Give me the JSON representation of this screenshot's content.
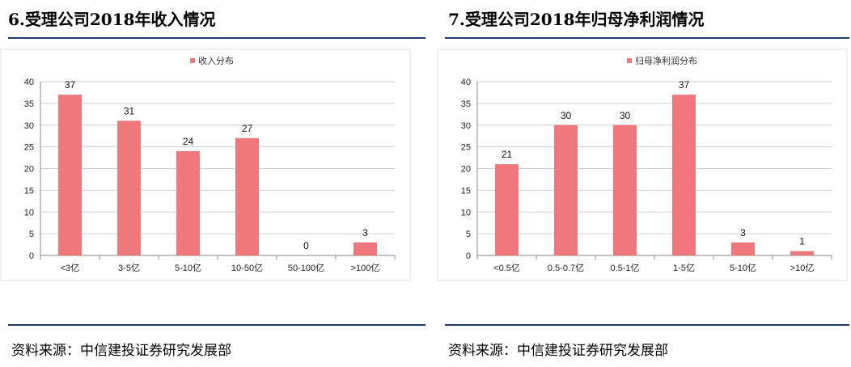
{
  "colors": {
    "bar": "#f0787c",
    "rule": "#1f3864",
    "grid": "#d0d0d0",
    "axis": "#888888"
  },
  "left": {
    "heading": "6.受理公司2018年收入情况",
    "source": "资料来源：中信建投证券研究发展部"
  },
  "right": {
    "heading": "7.受理公司2018年归母净利润情况",
    "source": "资料来源：中信建投证券研究发展部"
  },
  "chart_data": [
    {
      "type": "bar",
      "title": "",
      "legend": "收入分布",
      "legend_position": "top-center",
      "categories": [
        "<3亿",
        "3-5亿",
        "5-10亿",
        "10-50亿",
        "50-100亿",
        ">100亿"
      ],
      "values": [
        37,
        31,
        24,
        27,
        0,
        3
      ],
      "ylim": [
        0,
        40
      ],
      "yticks": [
        0,
        5,
        10,
        15,
        20,
        25,
        30,
        35,
        40
      ],
      "grid": true
    },
    {
      "type": "bar",
      "title": "",
      "legend": "归母净利润分布",
      "legend_position": "top-center",
      "categories": [
        "<0.5亿",
        "0.5-0.7亿",
        "0.5-1亿",
        "1-5亿",
        "5-10亿",
        ">10亿"
      ],
      "values": [
        21,
        30,
        30,
        37,
        3,
        1
      ],
      "ylim": [
        0,
        40
      ],
      "yticks": [
        0,
        5,
        10,
        15,
        20,
        25,
        30,
        35,
        40
      ],
      "grid": true
    }
  ]
}
